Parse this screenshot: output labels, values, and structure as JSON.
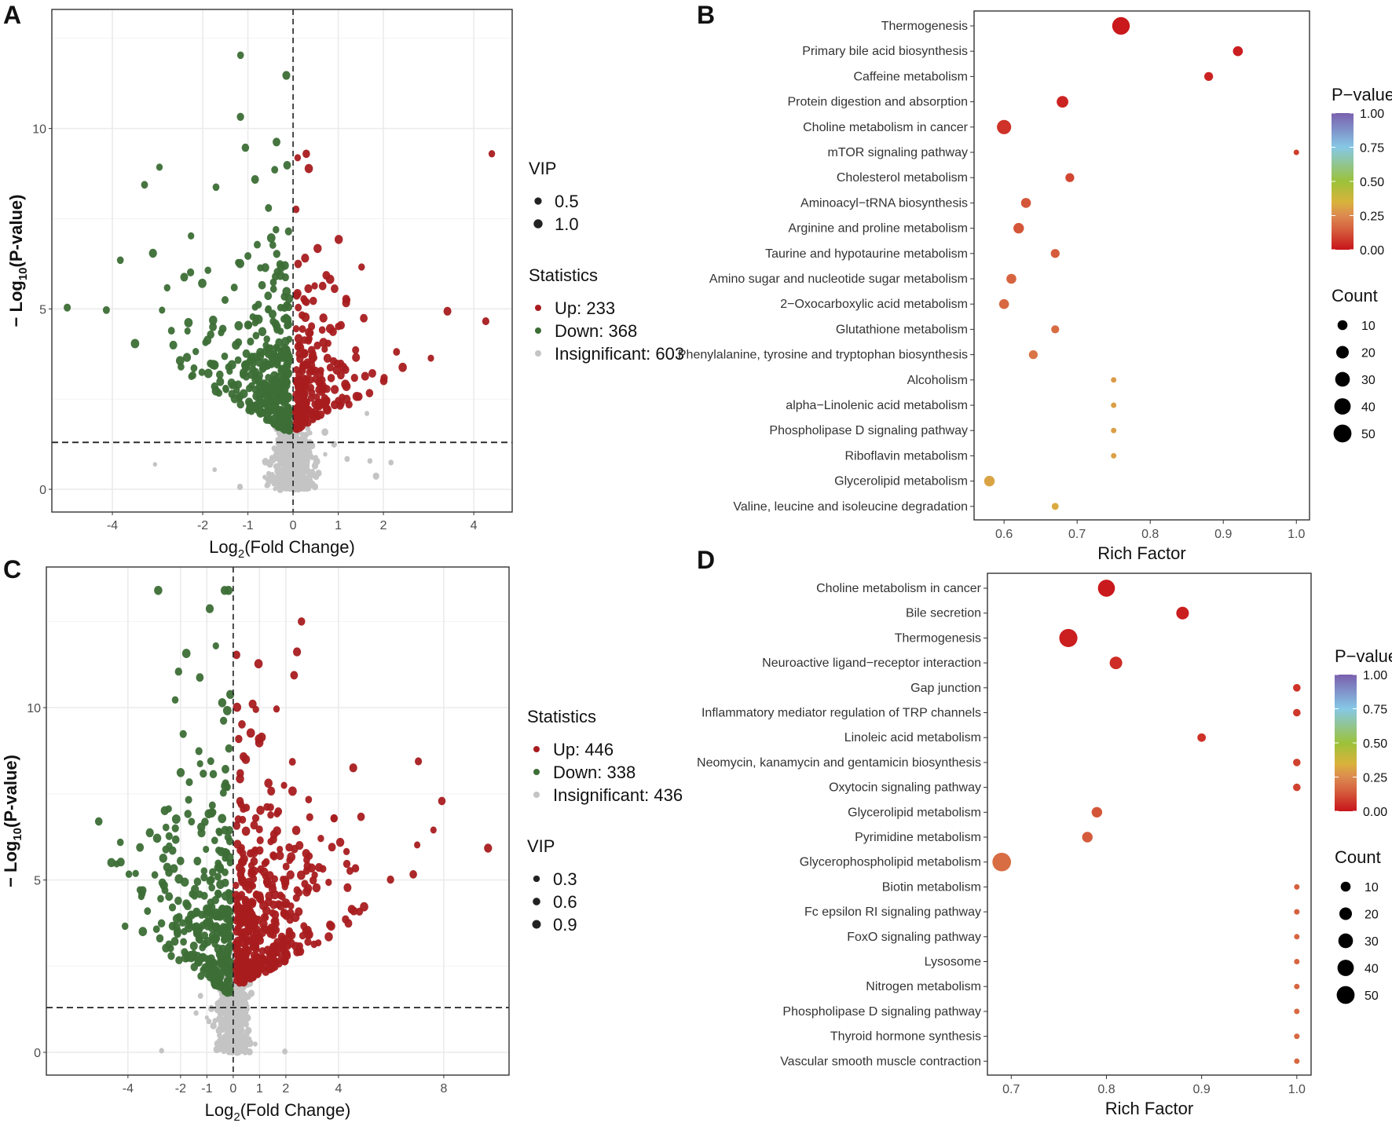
{
  "panels": [
    "A",
    "B",
    "C",
    "D"
  ],
  "chart_data": [
    {
      "panel": "A",
      "type": "scatter",
      "xlabel": {
        "base": "Log",
        "sub": "2",
        "rest": "(Fold Change)"
      },
      "ylabel": {
        "base": "− Log",
        "sub": "10",
        "rest": "(P-value)"
      },
      "xticks": [
        -4,
        -2,
        -1,
        0,
        1,
        2,
        4
      ],
      "yticks": [
        0,
        5,
        10
      ],
      "xlim": [
        -5.34,
        4.85
      ],
      "ylim": [
        -0.63,
        13.3
      ],
      "threshold_x": 0,
      "threshold_y": 1.3,
      "grid": true,
      "counts": {
        "up": 233,
        "down": 368,
        "insignificant": 603
      },
      "legend": {
        "placement": "right",
        "order": [
          "vip",
          "stats"
        ],
        "vip_title": "VIP",
        "vip_values": [
          "0.5",
          "1.0"
        ],
        "stats_title": "Statistics",
        "stats": [
          {
            "label": "Up: 233",
            "color": "#a81c1f"
          },
          {
            "label": "Down: 368",
            "color": "#3c6e36"
          },
          {
            "label": "Insignificant: 603",
            "color": "#c4c4c4"
          }
        ]
      }
    },
    {
      "panel": "B",
      "type": "scatter",
      "subtype": "bubble",
      "xlabel": "Rich Factor",
      "xticks": [
        "0.6",
        "0.7",
        "0.8",
        "0.9",
        "1.0"
      ],
      "xlim": [
        0.559,
        1.018
      ],
      "categories": [
        "Thermogenesis",
        "Primary bile acid biosynthesis",
        "Caffeine metabolism",
        "Protein digestion and absorption",
        "Choline metabolism in cancer",
        "mTOR signaling pathway",
        "Cholesterol metabolism",
        "Aminoacyl−tRNA biosynthesis",
        "Arginine and proline metabolism",
        "Taurine and hypotaurine metabolism",
        "Amino sugar and nucleotide sugar metabolism",
        "2−Oxocarboxylic acid metabolism",
        "Glutathione metabolism",
        "Phenylalanine, tyrosine and tryptophan biosynthesis",
        "Alcoholism",
        "alpha−Linolenic acid metabolism",
        "Phospholipase D signaling pathway",
        "Riboflavin metabolism",
        "Glycerolipid metabolism",
        "Valine, leucine and isoleucine degradation"
      ],
      "rich_factor": [
        0.76,
        0.92,
        0.88,
        0.68,
        0.6,
        1.0,
        0.69,
        0.63,
        0.62,
        0.67,
        0.61,
        0.6,
        0.67,
        0.64,
        0.75,
        0.75,
        0.75,
        0.75,
        0.58,
        0.67
      ],
      "count": [
        48,
        10,
        7,
        16,
        28,
        1,
        7,
        10,
        12,
        7,
        10,
        10,
        5,
        7,
        1,
        1,
        1,
        1,
        12,
        3
      ],
      "p_value": [
        0.01,
        0.02,
        0.03,
        0.03,
        0.06,
        0.08,
        0.1,
        0.13,
        0.13,
        0.14,
        0.16,
        0.17,
        0.18,
        0.2,
        0.29,
        0.3,
        0.3,
        0.3,
        0.31,
        0.33
      ],
      "legend": {
        "placement": "right",
        "pvalue_title": "P−value",
        "pvalue_ticks": [
          "1.00",
          "0.75",
          "0.50",
          "0.25",
          "0.00"
        ],
        "count_title": "Count",
        "count_values": [
          "10",
          "20",
          "30",
          "40",
          "50"
        ]
      }
    },
    {
      "panel": "C",
      "type": "scatter",
      "xlabel": {
        "base": "Log",
        "sub": "2",
        "rest": "(Fold Change)"
      },
      "ylabel": {
        "base": "− Log",
        "sub": "10",
        "rest": "(P-value)"
      },
      "xticks": [
        -4,
        -2,
        -1,
        0,
        1,
        2,
        4,
        8
      ],
      "yticks": [
        0,
        5,
        10
      ],
      "xlim": [
        -7.1,
        10.48
      ],
      "ylim": [
        -0.66,
        14.08
      ],
      "threshold_x": 0,
      "threshold_y": 1.3,
      "grid": true,
      "counts": {
        "up": 446,
        "down": 338,
        "insignificant": 436
      },
      "legend": {
        "placement": "right",
        "order": [
          "stats",
          "vip"
        ],
        "vip_title": "VIP",
        "vip_values": [
          "0.3",
          "0.6",
          "0.9"
        ],
        "stats_title": "Statistics",
        "stats": [
          {
            "label": "Up: 446",
            "color": "#a81c1f"
          },
          {
            "label": "Down: 338",
            "color": "#3c6e36"
          },
          {
            "label": "Insignificant: 436",
            "color": "#c4c4c4"
          }
        ]
      }
    },
    {
      "panel": "D",
      "type": "scatter",
      "subtype": "bubble",
      "xlabel": "Rich Factor",
      "xticks": [
        "0.7",
        "0.8",
        "0.9",
        "1.0"
      ],
      "xlim": [
        0.675,
        1.015
      ],
      "categories": [
        "Choline metabolism in cancer",
        "Bile secretion",
        "Thermogenesis",
        "Neuroactive ligand−receptor interaction",
        "Gap junction",
        "Inflammatory mediator regulation of TRP channels",
        "Linoleic acid metabolism",
        "Neomycin, kanamycin and gentamicin biosynthesis",
        "Oxytocin signaling pathway",
        "Glycerolipid metabolism",
        "Pyrimidine metabolism",
        "Glycerophospholipid metabolism",
        "Biotin metabolism",
        "Fc epsilon RI signaling pathway",
        "FoxO signaling pathway",
        "Lysosome",
        "Nitrogen metabolism",
        "Phospholipase D signaling pathway",
        "Thyroid hormone synthesis",
        "Vascular smooth muscle contraction"
      ],
      "rich_factor": [
        0.8,
        0.88,
        0.76,
        0.81,
        1.0,
        1.0,
        0.9,
        1.0,
        1.0,
        0.79,
        0.78,
        0.69,
        1.0,
        1.0,
        1.0,
        1.0,
        1.0,
        1.0,
        1.0,
        1.0
      ],
      "count": [
        44,
        20,
        52,
        20,
        4,
        4,
        6,
        4,
        4,
        12,
        12,
        55,
        1,
        1,
        1,
        1,
        1,
        1,
        1,
        1
      ],
      "p_value": [
        0.01,
        0.02,
        0.02,
        0.05,
        0.06,
        0.07,
        0.06,
        0.09,
        0.09,
        0.13,
        0.14,
        0.18,
        0.15,
        0.15,
        0.16,
        0.16,
        0.16,
        0.17,
        0.17,
        0.17
      ],
      "legend": {
        "placement": "right",
        "pvalue_title": "P−value",
        "pvalue_ticks": [
          "1.00",
          "0.75",
          "0.50",
          "0.25",
          "0.00"
        ],
        "count_title": "Count",
        "count_values": [
          "10",
          "20",
          "30",
          "40",
          "50"
        ]
      }
    }
  ]
}
